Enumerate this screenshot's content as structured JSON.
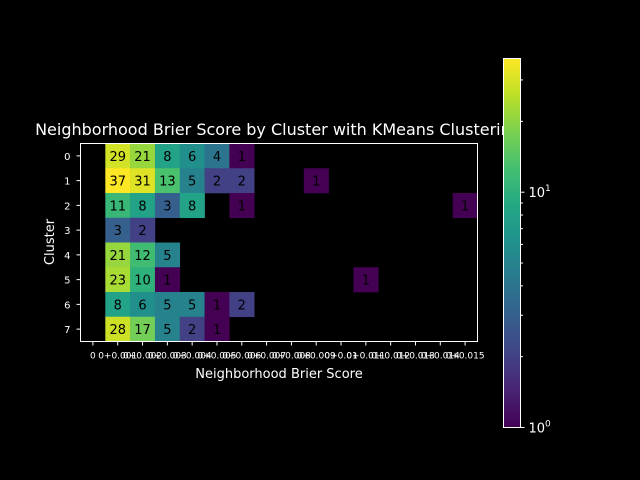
{
  "chart_data": {
    "type": "heatmap",
    "title": "Neighborhood Brier Score by Cluster with KMeans Clustering",
    "xlabel": "Neighborhood Brier Score",
    "ylabel": "Cluster",
    "rows": [
      "0",
      "1",
      "2",
      "3",
      "4",
      "5",
      "6",
      "7"
    ],
    "x_tick_labels": [
      "0",
      "0+0.001",
      "0+0.002",
      "0+0.003",
      "0+0.004",
      "0+0.005",
      "0+0.006",
      "0+0.007",
      "0+0.008",
      "0+0.009",
      "0+0.01",
      "0+0.011",
      "0+0.012",
      "0+0.013",
      "0+0.014",
      "0+0.015"
    ],
    "values": [
      [
        null,
        29,
        21,
        8,
        6,
        4,
        1,
        null,
        null,
        null,
        null,
        null,
        null,
        null,
        null,
        null
      ],
      [
        null,
        37,
        31,
        13,
        5,
        2,
        2,
        null,
        null,
        1,
        null,
        null,
        null,
        null,
        null,
        null
      ],
      [
        null,
        11,
        8,
        3,
        8,
        null,
        1,
        null,
        null,
        null,
        null,
        null,
        null,
        null,
        null,
        1
      ],
      [
        null,
        3,
        2,
        null,
        null,
        null,
        null,
        null,
        null,
        null,
        null,
        null,
        null,
        null,
        null,
        null
      ],
      [
        null,
        21,
        12,
        5,
        null,
        null,
        null,
        null,
        null,
        null,
        null,
        null,
        null,
        null,
        null,
        null
      ],
      [
        null,
        23,
        10,
        1,
        null,
        null,
        null,
        null,
        null,
        null,
        null,
        1,
        null,
        null,
        null,
        null
      ],
      [
        null,
        8,
        6,
        5,
        5,
        1,
        2,
        null,
        null,
        null,
        null,
        null,
        null,
        null,
        null,
        null
      ],
      [
        null,
        28,
        17,
        5,
        2,
        1,
        null,
        null,
        null,
        null,
        null,
        null,
        null,
        null,
        null,
        null
      ]
    ],
    "colorbar": {
      "scale": "log",
      "range": [
        1,
        37
      ],
      "colormap": "viridis",
      "tick_labels": [
        "10^0",
        "10^1"
      ]
    },
    "grid": false,
    "background": "#000000"
  }
}
